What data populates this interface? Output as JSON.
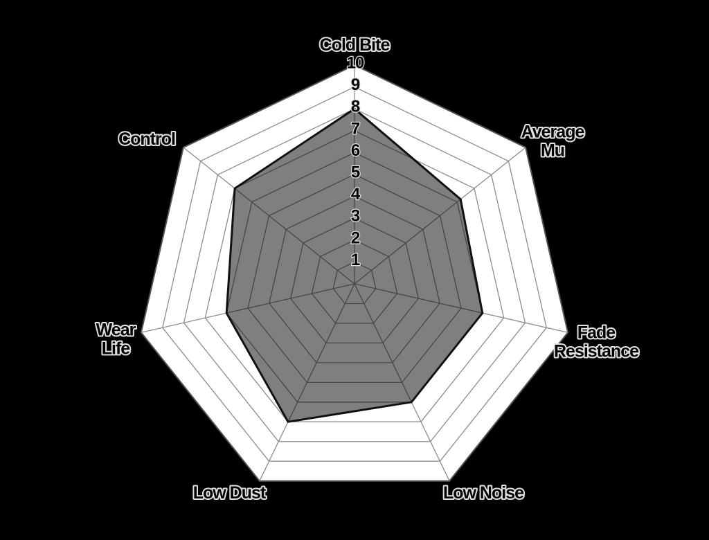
{
  "page": {
    "background_color": "#000000"
  },
  "chart_data": {
    "type": "radar",
    "categories": [
      "Cold Bite",
      "Average Mu",
      "Fade Resistance",
      "Low Noise",
      "Low Dust",
      "Wear Life",
      "Control"
    ],
    "values": [
      8,
      6.2,
      6,
      6,
      7,
      6,
      7
    ],
    "category_label_lines": [
      [
        "Cold Bite"
      ],
      [
        "Average",
        "Mu"
      ],
      [
        "Fade",
        "Resistance"
      ],
      [
        "Low Noise"
      ],
      [
        "Low Dust"
      ],
      [
        "Wear",
        "Life"
      ],
      [
        "Control"
      ]
    ],
    "axis_order": "clockwise-from-top",
    "scale_min": 0,
    "scale_max": 10,
    "ring_step": 1,
    "tick_labels": [
      "1",
      "2",
      "3",
      "4",
      "5",
      "6",
      "7",
      "8",
      "9",
      "10"
    ],
    "tick_axis": "Cold Bite",
    "grid": true,
    "legend": false,
    "colors": {
      "background": "#000000",
      "plot_area_fill": "#ffffff",
      "grid_line": "#8c8c8c",
      "outer_border": "#555555",
      "series_fill_apparent": "#808080",
      "series_fill_overlay": "rgba(0,0,0,0.5)",
      "series_stroke": "#111111",
      "label_text": "#000000",
      "label_outline": "#e2e2e2",
      "tick_text": "#000000"
    }
  }
}
